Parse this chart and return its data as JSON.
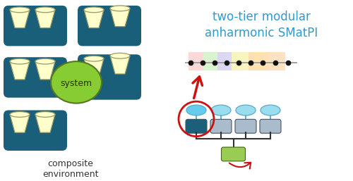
{
  "title": "two-tier modular\nanharmonic SMatPI",
  "title_color": "#3399cc",
  "title_fontsize": 12,
  "bg_color": "#ffffff",
  "composite_label": "composite\nenvironment",
  "system_label": "system",
  "teal_color": "#1a607a",
  "light_green": "#99cc55",
  "light_blue": "#66ccee",
  "light_blue2": "#99ddee",
  "gray_box": "#aabbcc",
  "cream": "#ffffdd",
  "dot_color": "#111111",
  "arrow_color": "#cc1111",
  "system_green": "#88cc33",
  "cup_face": "#ffffcc",
  "cup_edge": "#999966",
  "pi_rect_colors": [
    "#ffcccc",
    "#ccffcc",
    "#ddccff",
    "#ffffaa",
    "#ffd9aa"
  ],
  "teal_dark": "#1a5f7a"
}
